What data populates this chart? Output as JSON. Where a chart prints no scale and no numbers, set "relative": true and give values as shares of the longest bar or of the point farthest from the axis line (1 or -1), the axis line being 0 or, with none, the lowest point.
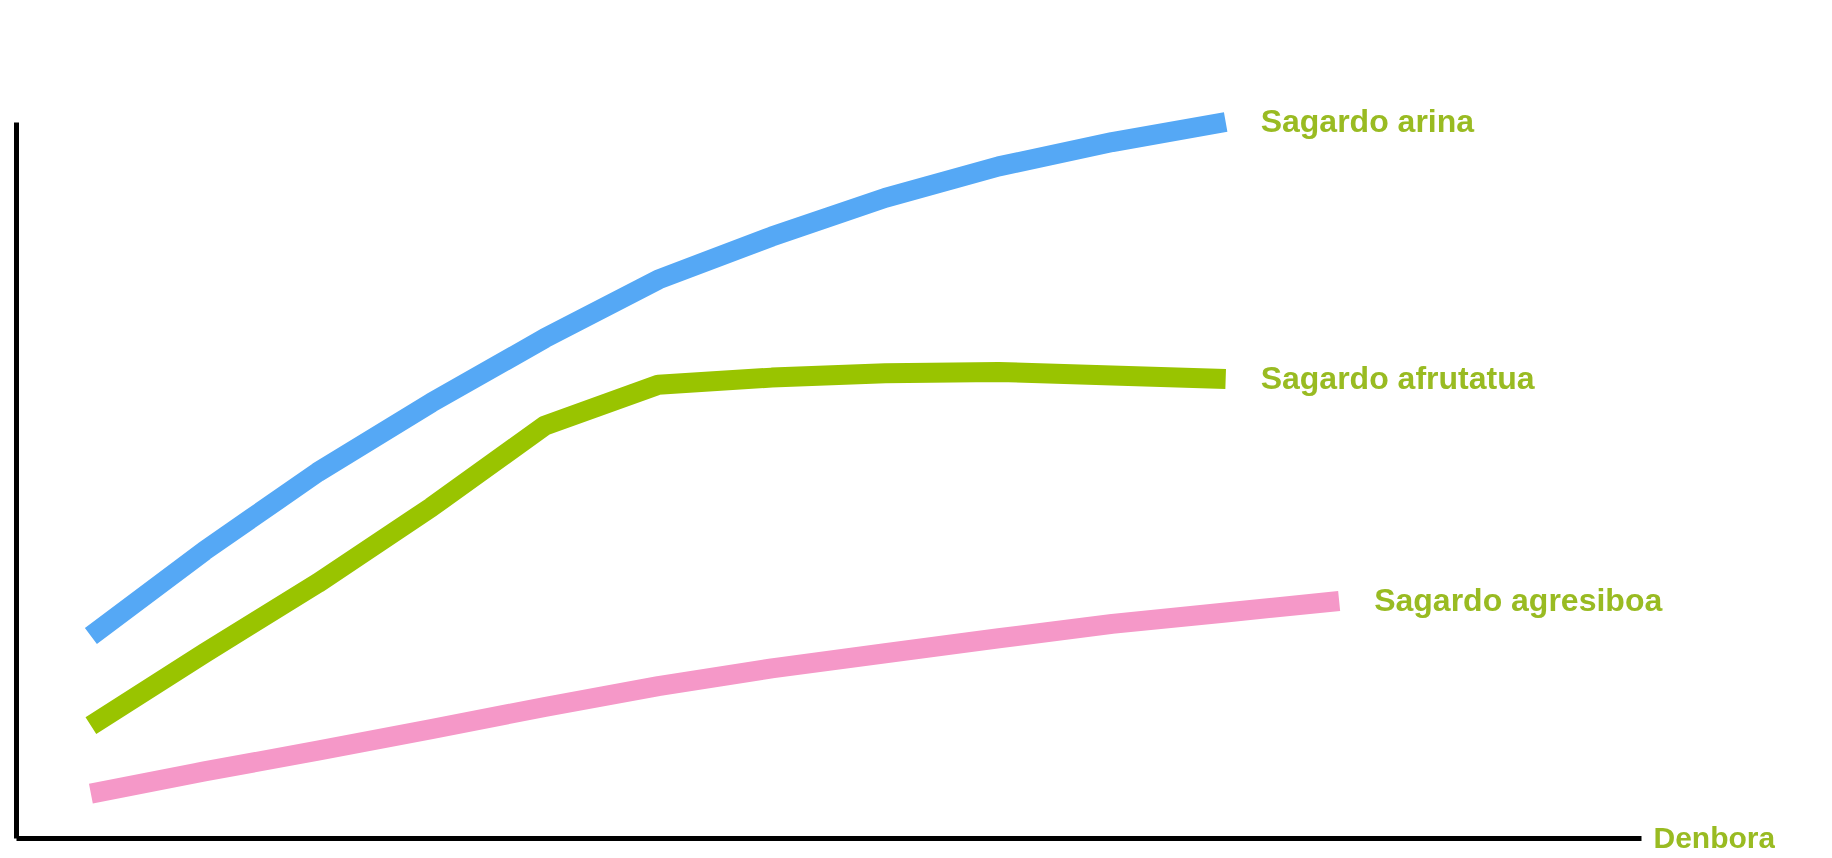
{
  "chart_data": {
    "type": "line",
    "xlabel": "Denbora",
    "relative": true,
    "categories": [
      null,
      null,
      null,
      null,
      null,
      null,
      null,
      null,
      null,
      null,
      null,
      null,
      null,
      null
    ],
    "series": [
      {
        "name": "Sagardo arina",
        "color": "#55a8f5",
        "values": [
          0.282,
          0.401,
          0.511,
          0.608,
          0.698,
          0.78,
          0.84,
          0.894,
          0.938,
          0.972,
          1,
          null,
          null,
          null
        ]
      },
      {
        "name": "Sagardo afrutatua",
        "color": "#99c400",
        "values": [
          0.157,
          0.258,
          0.356,
          0.462,
          0.576,
          0.633,
          0.643,
          0.649,
          0.651,
          0.646,
          0.641,
          null,
          null,
          null
        ]
      },
      {
        "name": "Sagardo agresiboa",
        "color": "#f598c8",
        "values": [
          0.062,
          0.093,
          0.122,
          0.152,
          0.183,
          0.212,
          0.237,
          0.258,
          0.279,
          0.299,
          0.315,
          0.331,
          null,
          null
        ]
      }
    ]
  }
}
